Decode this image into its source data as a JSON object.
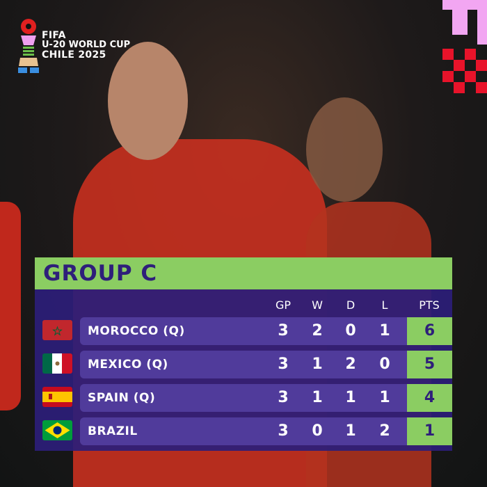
{
  "logo": {
    "line1": "FIFA",
    "line2": "U-20 WORLD CUP",
    "line3": "CHILE 2025"
  },
  "colors": {
    "green": "#8bcd62",
    "purple": "#2c1e78",
    "text_dark": "#2e1f7a"
  },
  "table": {
    "title": "GROUP C",
    "columns": [
      "GP",
      "W",
      "D",
      "L",
      "PTS"
    ],
    "rows": [
      {
        "team": "MOROCCO  (Q)",
        "flag": "morocco-flag",
        "gp": "3",
        "w": "2",
        "d": "0",
        "l": "1",
        "pts": "6"
      },
      {
        "team": "MEXICO (Q)",
        "flag": "mexico-flag",
        "gp": "3",
        "w": "1",
        "d": "2",
        "l": "0",
        "pts": "5"
      },
      {
        "team": "SPAIN (Q)",
        "flag": "spain-flag",
        "gp": "3",
        "w": "1",
        "d": "1",
        "l": "1",
        "pts": "4"
      },
      {
        "team": "BRAZIL",
        "flag": "brazil-flag",
        "gp": "3",
        "w": "0",
        "d": "1",
        "l": "2",
        "pts": "1"
      }
    ]
  }
}
